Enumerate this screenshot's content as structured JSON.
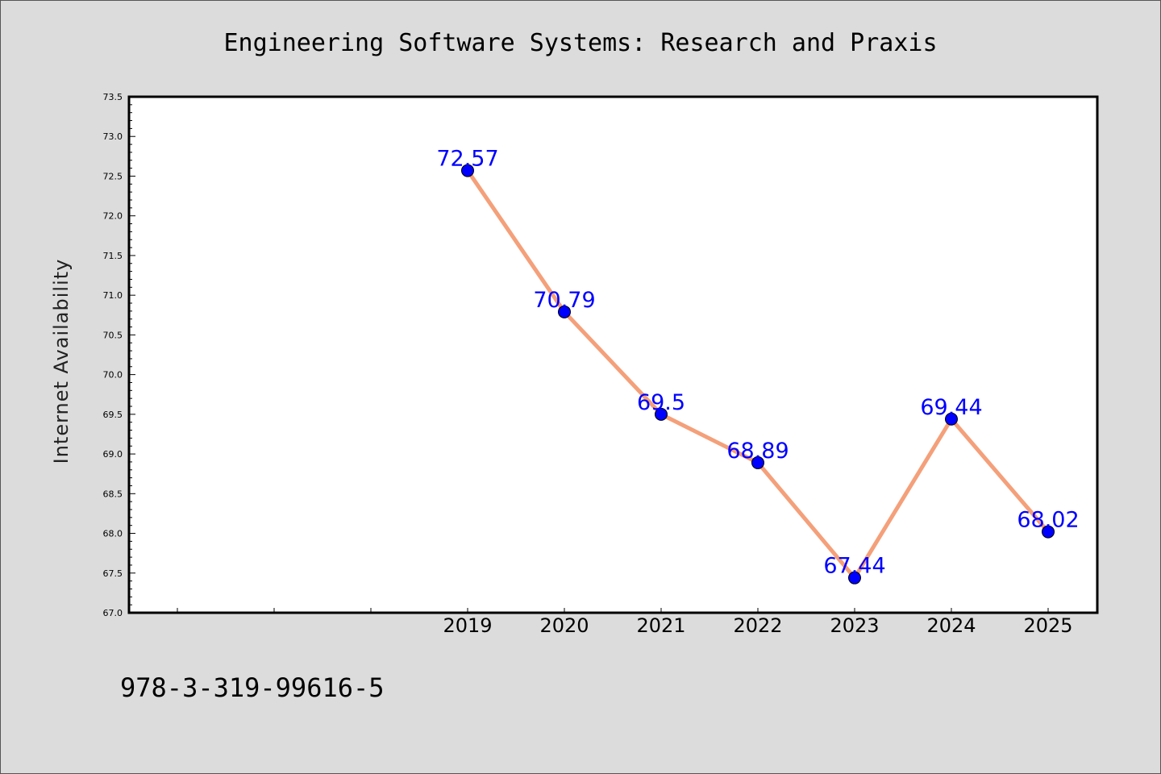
{
  "chart_data": {
    "type": "line",
    "title": "Engineering Software Systems: Research and Praxis",
    "ylabel": "Internet Availability",
    "xlabel": "",
    "categories": [
      "2019",
      "2020",
      "2021",
      "2022",
      "2023",
      "2024",
      "2025"
    ],
    "series": [
      {
        "values": [
          72.57,
          70.79,
          69.5,
          68.89,
          67.44,
          69.44,
          68.02
        ]
      }
    ],
    "data_labels": [
      "72.57",
      "70.79",
      "69.5",
      "68.89",
      "67.44",
      "69.44",
      "68.02"
    ],
    "x_domain": [
      2016,
      2025
    ],
    "ylim": [
      67.0,
      73.5
    ],
    "yticks": [
      "67.0",
      "67.5",
      "68.0",
      "68.5",
      "69.0",
      "69.5",
      "70.0",
      "70.5",
      "71.0",
      "71.5",
      "72.0",
      "72.5",
      "73.0",
      "73.5"
    ],
    "grid": false,
    "colors": {
      "line": "#f4a07a",
      "marker": "#0000ff",
      "label": "#0000ff",
      "plot_background": "#ffffff",
      "figure_background": "#dcdcdc"
    }
  },
  "footer": {
    "isbn": "978-3-319-99616-5"
  }
}
